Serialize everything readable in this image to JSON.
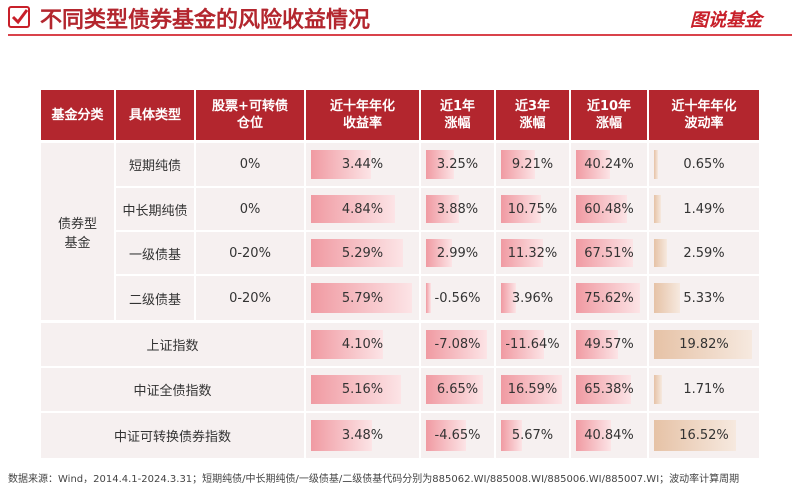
{
  "header": {
    "title": "不同类型债券基金的风险收益情况",
    "logo": "图说基金"
  },
  "table": {
    "columns": [
      [
        "基金分类"
      ],
      [
        "具体类型"
      ],
      [
        "股票+可转债",
        "仓位"
      ],
      [
        "近十年年化",
        "收益率"
      ],
      [
        "近1年",
        "涨幅"
      ],
      [
        "近3年",
        "涨幅"
      ],
      [
        "近10年",
        "涨幅"
      ],
      [
        "近十年年化",
        "波动率"
      ]
    ],
    "group": [
      "债券型",
      "基金"
    ],
    "bond_rows": [
      [
        "短期纯债",
        "0%",
        "3.44%",
        "3.25%",
        "9.21%",
        "40.24%",
        "0.65%"
      ],
      [
        "中长期纯债",
        "0%",
        "4.84%",
        "3.88%",
        "10.75%",
        "60.48%",
        "1.49%"
      ],
      [
        "一级债基",
        "0-20%",
        "5.29%",
        "2.99%",
        "11.32%",
        "67.51%",
        "2.59%"
      ],
      [
        "二级债基",
        "0-20%",
        "5.79%",
        "-0.56%",
        "3.96%",
        "75.62%",
        "5.33%"
      ]
    ],
    "index_rows": [
      [
        "上证指数",
        "4.10%",
        "-7.08%",
        "-11.64%",
        "49.57%",
        "19.82%"
      ],
      [
        "中证全债指数",
        "5.16%",
        "6.65%",
        "16.59%",
        "65.38%",
        "1.71%"
      ],
      [
        "中证可转换债券指数",
        "3.48%",
        "-4.65%",
        "5.67%",
        "40.84%",
        "16.52%"
      ]
    ]
  },
  "footer": {
    "source": "数据来源：Wind，2014.4.1-2024.3.31；短期纯债/中长期纯债/一级债基/二级债基代码分别为885062.WI/885008.WI/885006.WI/885007.WI；波动率计算周期"
  }
}
